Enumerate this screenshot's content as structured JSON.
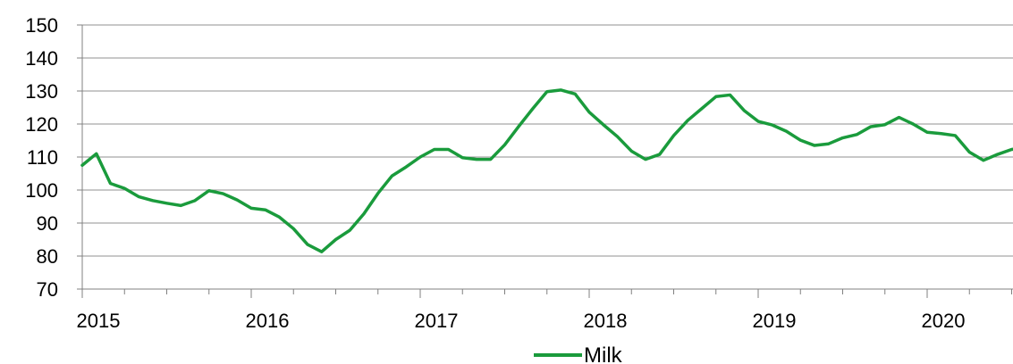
{
  "chart_data": {
    "type": "line",
    "title": "",
    "xlabel": "",
    "ylabel": "",
    "ylim": [
      70,
      150
    ],
    "yticks": [
      70,
      80,
      90,
      100,
      110,
      120,
      130,
      140,
      150
    ],
    "xticks": [
      "2015",
      "2016",
      "2017",
      "2018",
      "2019",
      "2020"
    ],
    "grid": "horizontal",
    "legend": "bottom",
    "series": [
      {
        "name": "Milk",
        "color": "#1a9b3c",
        "start": "2015-01",
        "frequency": "monthly",
        "values": [
          107.5,
          111,
          102,
          100.5,
          98,
          96.8,
          96,
          95.3,
          96.8,
          99.8,
          98.9,
          97,
          94.5,
          94,
          91.8,
          88.3,
          83.5,
          81.3,
          85,
          87.8,
          92.8,
          99,
          104.3,
          107,
          110,
          112.3,
          112.3,
          109.8,
          109.3,
          109.3,
          113.7,
          119.3,
          124.7,
          129.8,
          130.3,
          129.1,
          123.6,
          119.8,
          116.2,
          111.8,
          109.3,
          110.8,
          116.5,
          121.1,
          124.7,
          128.3,
          128.8,
          124.1,
          120.8,
          119.7,
          117.8,
          115.1,
          113.5,
          114,
          115.8,
          116.8,
          119.2,
          119.8,
          122,
          120,
          117.5,
          117.1,
          116.5,
          111.5,
          109,
          110.8,
          112.3,
          112.8
        ]
      }
    ]
  }
}
